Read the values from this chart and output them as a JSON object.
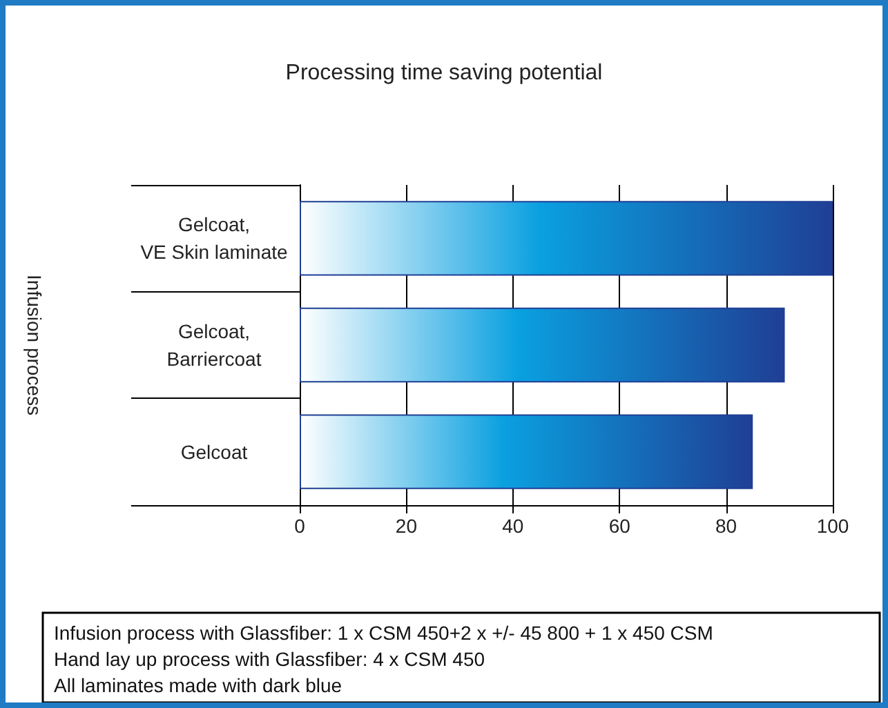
{
  "chart_data": {
    "type": "bar",
    "orientation": "horizontal",
    "title": "Processing time saving potential",
    "ylabel": "Infusion process",
    "categories": [
      "Gelcoat,\nVE Skin laminate",
      "Gelcoat,\nBarriercoat",
      "Gelcoat"
    ],
    "values": [
      100,
      91,
      85
    ],
    "color": "#1f3f95",
    "xlim": [
      0,
      100
    ],
    "xticks": [
      0,
      20,
      40,
      60,
      80,
      100
    ],
    "grid": "x",
    "annotations": [
      "Infusion process with Glassfiber: 1 x CSM 450+2 x +/- 45 800 + 1 x 450 CSM",
      "Hand lay up process with Glassfiber: 4 x CSM 450",
      "All laminates made with dark blue"
    ]
  }
}
